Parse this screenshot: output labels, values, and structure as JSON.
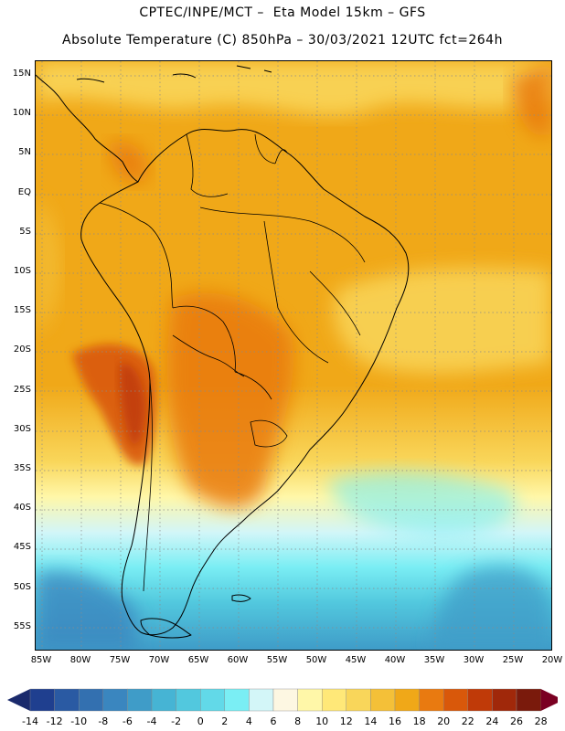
{
  "title_line1": "CPTEC/INPE/MCT –  Eta Model 15km – GFS",
  "title_line2": "Absolute Temperature (C) 850hPa – 30/03/2021 12UTC fct=264h",
  "lat_labels": [
    "15N",
    "10N",
    "5N",
    "EQ",
    "5S",
    "10S",
    "15S",
    "20S",
    "25S",
    "30S",
    "35S",
    "40S",
    "45S",
    "50S",
    "55S"
  ],
  "lon_labels": [
    "85W",
    "80W",
    "75W",
    "70W",
    "65W",
    "60W",
    "55W",
    "50W",
    "45W",
    "40W",
    "35W",
    "30W",
    "25W",
    "20W"
  ],
  "colorbar": {
    "labels": [
      "-14",
      "-12",
      "-10",
      "-8",
      "-6",
      "-4",
      "-2",
      "0",
      "2",
      "4",
      "6",
      "8",
      "10",
      "12",
      "14",
      "16",
      "18",
      "20",
      "22",
      "24",
      "26",
      "28"
    ],
    "colors": [
      "#1f3f8f",
      "#2a5aa3",
      "#3370b0",
      "#3a86bf",
      "#3f9cc8",
      "#46b4d4",
      "#52c8de",
      "#62d9e8",
      "#7aeef4",
      "#d3f6f8",
      "#fdf7e2",
      "#fff7a8",
      "#ffe878",
      "#f9d65a",
      "#f4c038",
      "#f0a818",
      "#e97a10",
      "#d9580a",
      "#c03a08",
      "#a0280a",
      "#7a1a0c"
    ],
    "under_color": "#1a2a6c",
    "over_color": "#7a0022"
  },
  "map": {
    "ocean_base_color": "#f0a21a",
    "land_line_color": "#000000",
    "grid_color": "#8a8a8a"
  }
}
